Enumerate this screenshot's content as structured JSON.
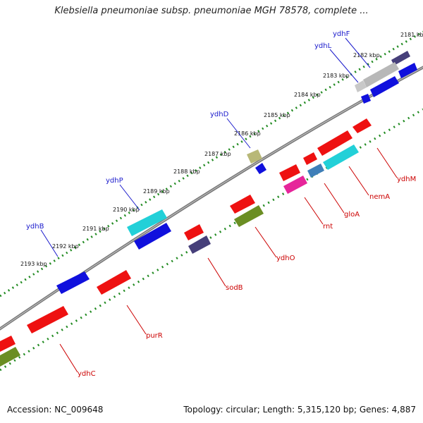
{
  "header": {
    "title": "Klebsiella pneumoniae subsp. pneumoniae MGH 78578, complete ..."
  },
  "footer": {
    "accession": "Accession: NC_009648",
    "summary": "Topology: circular; Length: 5,315,120 bp; Genes: 4,887"
  },
  "map": {
    "tick_labels": [
      "2181 kbp",
      "2182 kbp",
      "2183 kbp",
      "2184 kbp",
      "2185 kbp",
      "2186 kbp",
      "2187 kbp",
      "2188 kbp",
      "2189 kbp",
      "2190 kbp",
      "2191 kbp",
      "2192 kbp",
      "2193 kbp"
    ],
    "top_labels": [
      "ydhF",
      "ydhL",
      "ydhD",
      "ydhP",
      "ydhB"
    ],
    "bottom_labels": [
      "ydhM",
      "nemA",
      "gloA",
      "rnt",
      "ydhO",
      "sodB",
      "purR",
      "ydhC"
    ],
    "colors": {
      "backbone": "#888888",
      "tick_dots": "#228B22",
      "top_label": "#1a1acc",
      "bottom_label": "#cc0000",
      "red": "#ee1111",
      "blue": "#1010dd",
      "cyan": "#22d0d8",
      "olive": "#6b8e23",
      "navy": "#463f7a",
      "grey": "#b8b8b8",
      "khaki": "#b8b878",
      "pink": "#e6259a",
      "steelblue": "#3f7fb8"
    }
  }
}
